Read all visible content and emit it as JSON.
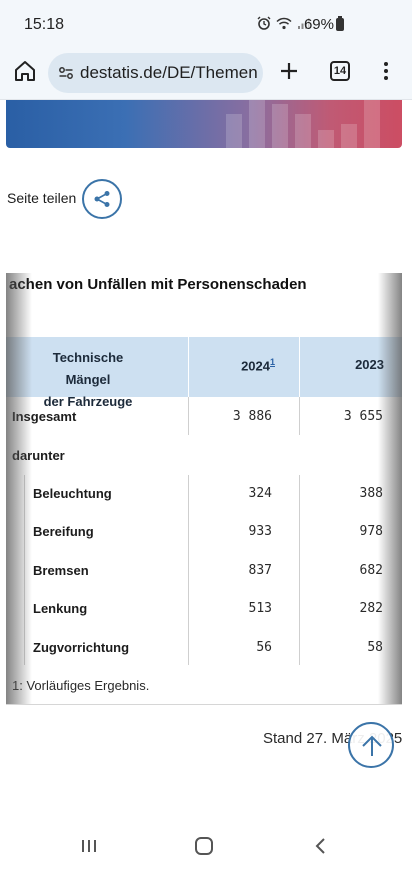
{
  "status_bar": {
    "time": "15:18",
    "battery": "69%"
  },
  "browser": {
    "url": "destatis.de/DE/Themen",
    "tab_count": "14"
  },
  "share": {
    "label": "Seite teilen"
  },
  "table": {
    "title": "achen von Unfällen mit Personenschaden",
    "header": {
      "col1_line1": "Technische Mängel",
      "col1_line2": "der Fahrzeuge",
      "col2": "2024",
      "col2_footnote": "1",
      "col3": "2023"
    },
    "rows": [
      {
        "label": "Insgesamt",
        "v2024": "3 886",
        "v2023": "3 655"
      },
      {
        "label": "darunter",
        "v2024": "",
        "v2023": ""
      },
      {
        "label": "Beleuchtung",
        "v2024": "324",
        "v2023": "388"
      },
      {
        "label": "Bereifung",
        "v2024": "933",
        "v2023": "978"
      },
      {
        "label": "Bremsen",
        "v2024": "837",
        "v2023": "682"
      },
      {
        "label": "Lenkung",
        "v2024": "513",
        "v2023": "282"
      },
      {
        "label": "Zugvorrichtung",
        "v2024": "56",
        "v2023": "58"
      }
    ],
    "footnote": "1: Vorläufiges Ergebnis."
  },
  "stand": "Stand 27. März 2025",
  "colors": {
    "accent": "#3b74a8",
    "header_bg": "#cde0f1",
    "banner_start": "#2a5fa5",
    "banner_end": "#cc4d63"
  }
}
